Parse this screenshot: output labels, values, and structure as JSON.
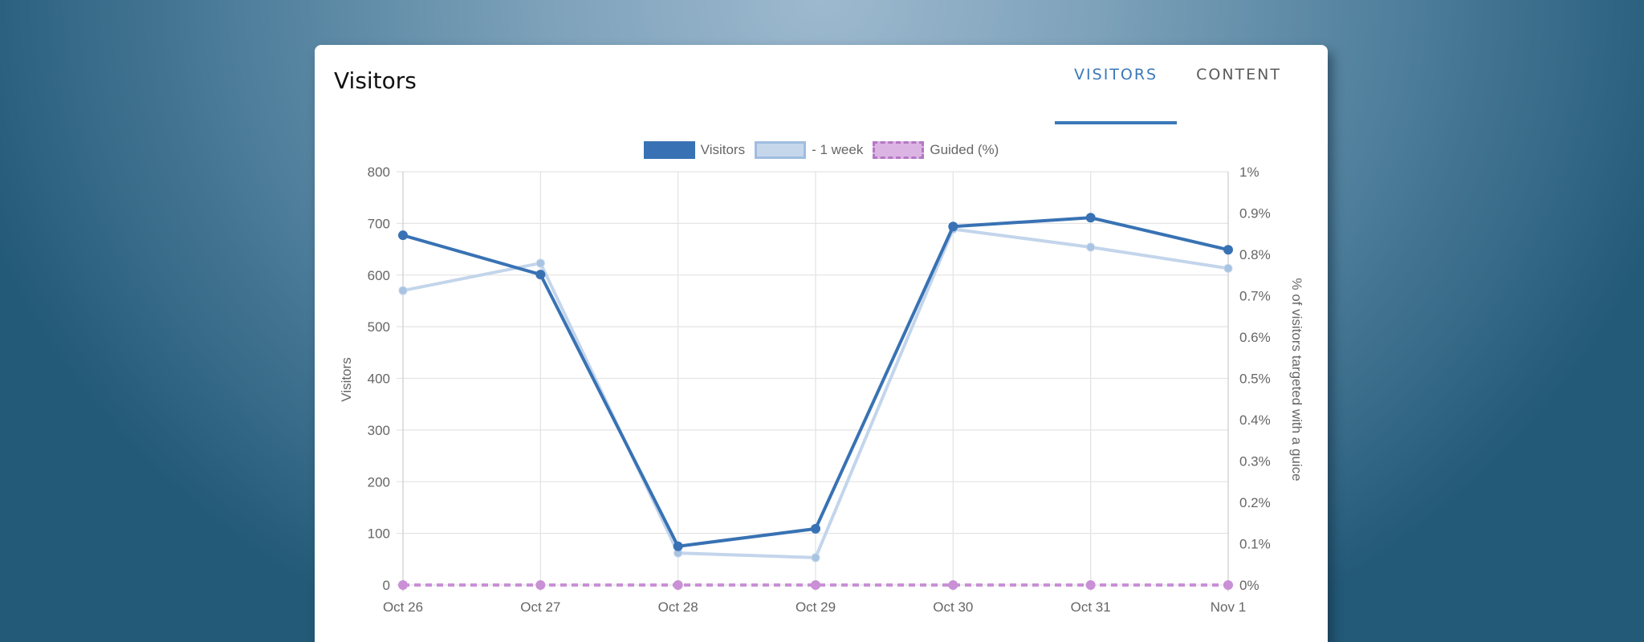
{
  "card": {
    "title": "Visitors",
    "tabs": [
      {
        "label": "VISITORS",
        "active": true
      },
      {
        "label": "CONTENT",
        "active": false
      }
    ]
  },
  "legend": [
    {
      "label": "Visitors",
      "color": "#3872b4"
    },
    {
      "label": "- 1 week",
      "color": "#c6d7ec"
    },
    {
      "label": "Guided (%)",
      "color": "#c58fd1"
    }
  ],
  "chart_data": {
    "type": "line",
    "title": "Visitors",
    "categories": [
      "Oct 26",
      "Oct 27",
      "Oct 28",
      "Oct 29",
      "Oct 30",
      "Oct 31",
      "Nov 1"
    ],
    "series": [
      {
        "name": "Visitors",
        "axis": "left",
        "values": [
          677,
          601,
          75,
          109,
          694,
          711,
          649
        ],
        "color": "#3872b4"
      },
      {
        "name": "- 1 week",
        "axis": "left",
        "values": [
          570,
          623,
          62,
          53,
          689,
          654,
          613
        ],
        "color": "#c6d7ec"
      },
      {
        "name": "Guided (%)",
        "axis": "right",
        "values": [
          0,
          0,
          0,
          0,
          0,
          0,
          0
        ],
        "color": "#c58fd1",
        "dashed": true
      }
    ],
    "xlabel": "",
    "ylabel": "Visitors",
    "ylabel_right": "% of visitors targeted with a guice",
    "ylim": [
      0,
      800
    ],
    "ylim_right": [
      0,
      1
    ],
    "yticks": [
      "0",
      "100",
      "200",
      "300",
      "400",
      "500",
      "600",
      "700",
      "800"
    ],
    "yticks_right": [
      "0%",
      "0.1%",
      "0.2%",
      "0.3%",
      "0.4%",
      "0.5%",
      "0.6%",
      "0.7%",
      "0.8%",
      "0.9%",
      "1%"
    ],
    "grid": true,
    "legend_position": "top"
  }
}
